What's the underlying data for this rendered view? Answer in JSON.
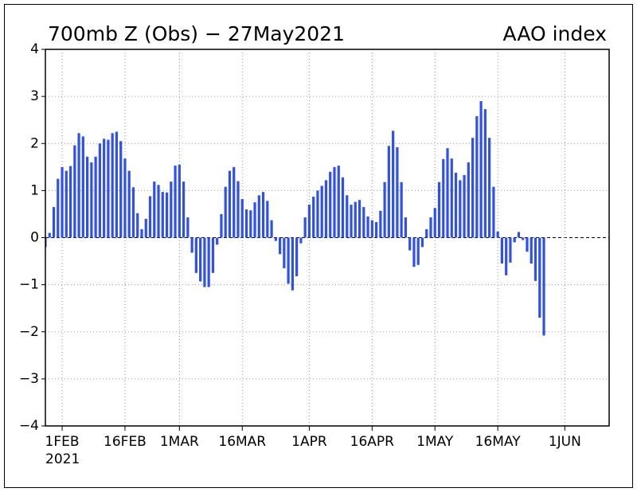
{
  "chart_data": {
    "type": "bar",
    "title": "700mb Z (Obs) − 27May2021",
    "subtitle": "AAO index",
    "x_year_label": "2021",
    "color": "#3050ee",
    "grid": true,
    "ylim": [
      -4,
      4
    ],
    "yticks": [
      {
        "value": -4,
        "label": "−4"
      },
      {
        "value": -3,
        "label": "−3"
      },
      {
        "value": -2,
        "label": "−2"
      },
      {
        "value": -1,
        "label": "−1"
      },
      0,
      1,
      2,
      3,
      4
    ],
    "xlim": [
      "2021-01-28T00:00:00Z",
      "2021-06-11T14:00:00Z"
    ],
    "xticks": [
      {
        "value": "2021-02-01",
        "label": "1FEB"
      },
      {
        "value": "2021-02-16",
        "label": "16FEB"
      },
      {
        "value": "2021-03-01",
        "label": "1MAR"
      },
      {
        "value": "2021-03-16",
        "label": "16MAR"
      },
      {
        "value": "2021-04-01",
        "label": "1APR"
      },
      {
        "value": "2021-04-16",
        "label": "16APR"
      },
      {
        "value": "2021-05-01",
        "label": "1MAY"
      },
      {
        "value": "2021-05-16",
        "label": "16MAY"
      },
      {
        "value": "2021-06-01",
        "label": "1JUN"
      }
    ],
    "x": [
      "2021-01-28",
      "2021-01-29",
      "2021-01-30",
      "2021-01-31",
      "2021-02-01",
      "2021-02-02",
      "2021-02-03",
      "2021-02-04",
      "2021-02-05",
      "2021-02-06",
      "2021-02-07",
      "2021-02-08",
      "2021-02-09",
      "2021-02-10",
      "2021-02-11",
      "2021-02-12",
      "2021-02-13",
      "2021-02-14",
      "2021-02-15",
      "2021-02-16",
      "2021-02-17",
      "2021-02-18",
      "2021-02-19",
      "2021-02-20",
      "2021-02-21",
      "2021-02-22",
      "2021-02-23",
      "2021-02-24",
      "2021-02-25",
      "2021-02-26",
      "2021-02-27",
      "2021-02-28",
      "2021-03-01",
      "2021-03-02",
      "2021-03-03",
      "2021-03-04",
      "2021-03-05",
      "2021-03-06",
      "2021-03-07",
      "2021-03-08",
      "2021-03-09",
      "2021-03-10",
      "2021-03-11",
      "2021-03-12",
      "2021-03-13",
      "2021-03-14",
      "2021-03-15",
      "2021-03-16",
      "2021-03-17",
      "2021-03-18",
      "2021-03-19",
      "2021-03-20",
      "2021-03-21",
      "2021-03-22",
      "2021-03-23",
      "2021-03-24",
      "2021-03-25",
      "2021-03-26",
      "2021-03-27",
      "2021-03-28",
      "2021-03-29",
      "2021-03-30",
      "2021-03-31",
      "2021-04-01",
      "2021-04-02",
      "2021-04-03",
      "2021-04-04",
      "2021-04-05",
      "2021-04-06",
      "2021-04-07",
      "2021-04-08",
      "2021-04-09",
      "2021-04-10",
      "2021-04-11",
      "2021-04-12",
      "2021-04-13",
      "2021-04-14",
      "2021-04-15",
      "2021-04-16",
      "2021-04-17",
      "2021-04-18",
      "2021-04-19",
      "2021-04-20",
      "2021-04-21",
      "2021-04-22",
      "2021-04-23",
      "2021-04-24",
      "2021-04-25",
      "2021-04-26",
      "2021-04-27",
      "2021-04-28",
      "2021-04-29",
      "2021-04-30",
      "2021-05-01",
      "2021-05-02",
      "2021-05-03",
      "2021-05-04",
      "2021-05-05",
      "2021-05-06",
      "2021-05-07",
      "2021-05-08",
      "2021-05-09",
      "2021-05-10",
      "2021-05-11",
      "2021-05-12",
      "2021-05-13",
      "2021-05-14",
      "2021-05-15",
      "2021-05-16",
      "2021-05-17",
      "2021-05-18",
      "2021-05-19",
      "2021-05-20",
      "2021-05-21",
      "2021-05-22",
      "2021-05-23",
      "2021-05-24",
      "2021-05-25",
      "2021-05-26",
      "2021-05-27"
    ],
    "values": [
      -0.2,
      0.1,
      0.65,
      1.25,
      1.5,
      1.42,
      1.52,
      1.96,
      2.22,
      2.15,
      1.72,
      1.6,
      1.72,
      2.0,
      2.1,
      2.08,
      2.22,
      2.25,
      2.05,
      1.68,
      1.42,
      1.07,
      0.52,
      0.18,
      0.4,
      0.88,
      1.19,
      1.12,
      0.97,
      0.96,
      1.19,
      1.53,
      1.55,
      1.19,
      0.43,
      -0.32,
      -0.75,
      -0.93,
      -1.05,
      -1.05,
      -0.75,
      -0.15,
      0.5,
      1.08,
      1.42,
      1.5,
      1.2,
      0.82,
      0.6,
      0.58,
      0.75,
      0.9,
      0.97,
      0.78,
      0.37,
      -0.07,
      -0.35,
      -0.65,
      -0.98,
      -1.12,
      -0.82,
      -0.12,
      0.43,
      0.7,
      0.87,
      1.0,
      1.1,
      1.22,
      1.4,
      1.5,
      1.53,
      1.28,
      0.9,
      0.7,
      0.76,
      0.8,
      0.65,
      0.45,
      0.37,
      0.33,
      0.57,
      1.18,
      1.95,
      2.27,
      1.92,
      1.18,
      0.43,
      -0.27,
      -0.62,
      -0.58,
      -0.2,
      0.18,
      0.43,
      0.63,
      1.18,
      1.67,
      1.9,
      1.68,
      1.38,
      1.22,
      1.33,
      1.6,
      2.12,
      2.58,
      2.9,
      2.73,
      2.12,
      1.08,
      0.13,
      -0.55,
      -0.8,
      -0.53,
      -0.1,
      0.12,
      -0.05,
      -0.3,
      -0.55,
      -0.92,
      -1.7,
      -2.08
    ]
  }
}
